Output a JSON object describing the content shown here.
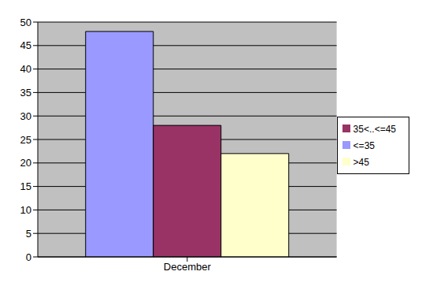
{
  "chart_data": {
    "type": "bar",
    "categories": [
      "December"
    ],
    "series": [
      {
        "name": "<=35",
        "color": "#9999ff",
        "values": [
          48
        ]
      },
      {
        "name": "35<..<=45",
        "color": "#993366",
        "values": [
          28
        ]
      },
      {
        "name": ">45",
        "color": "#ffffcc",
        "values": [
          22
        ]
      }
    ],
    "ylim": [
      0,
      50
    ],
    "yticks": [
      0,
      5,
      10,
      15,
      20,
      25,
      30,
      35,
      40,
      45,
      50
    ],
    "grid": true,
    "legend": "right"
  }
}
